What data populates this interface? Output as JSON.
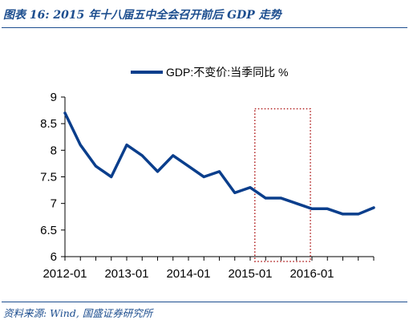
{
  "header": {
    "title": "图表 16:  2015 年十八届五中全会召开前后 GDP 走势"
  },
  "footer": {
    "source": "资料来源:  Wind,  国盛证券研究所"
  },
  "colors": {
    "accent": "#1d4e8f",
    "series": "#0a3e8c",
    "highlight_box": "#b22222"
  },
  "chart_data": {
    "type": "line",
    "title": "",
    "xlabel": "",
    "ylabel": "",
    "ylim": [
      6,
      9
    ],
    "yticks": [
      6,
      6.5,
      7,
      7.5,
      8,
      8.5,
      9
    ],
    "ytick_labels": [
      "6",
      "6.5",
      "7",
      "7.5",
      "8",
      "8.5",
      "9"
    ],
    "xlim": [
      0,
      20
    ],
    "xtick_positions": [
      0,
      4,
      8,
      12,
      16
    ],
    "xtick_labels": [
      "2012-01",
      "2013-01",
      "2014-01",
      "2015-01",
      "2016-01"
    ],
    "grid": false,
    "legend_position": "top-center",
    "x": [
      0,
      1,
      2,
      3,
      4,
      5,
      6,
      7,
      8,
      9,
      10,
      11,
      12,
      13,
      14,
      15,
      16,
      17,
      18,
      19,
      20
    ],
    "series": [
      {
        "name": "GDP:不变价:当季同比 %",
        "values": [
          8.7,
          8.1,
          7.7,
          7.5,
          8.1,
          7.9,
          7.6,
          7.9,
          7.7,
          7.5,
          7.6,
          7.2,
          7.3,
          7.1,
          7.1,
          7.0,
          6.9,
          6.9,
          6.8,
          6.8,
          6.92
        ]
      }
    ],
    "highlight": {
      "x_range": [
        12.3,
        15.9
      ],
      "y_range": [
        6.0,
        8.78
      ],
      "style": "dotted-box"
    }
  }
}
